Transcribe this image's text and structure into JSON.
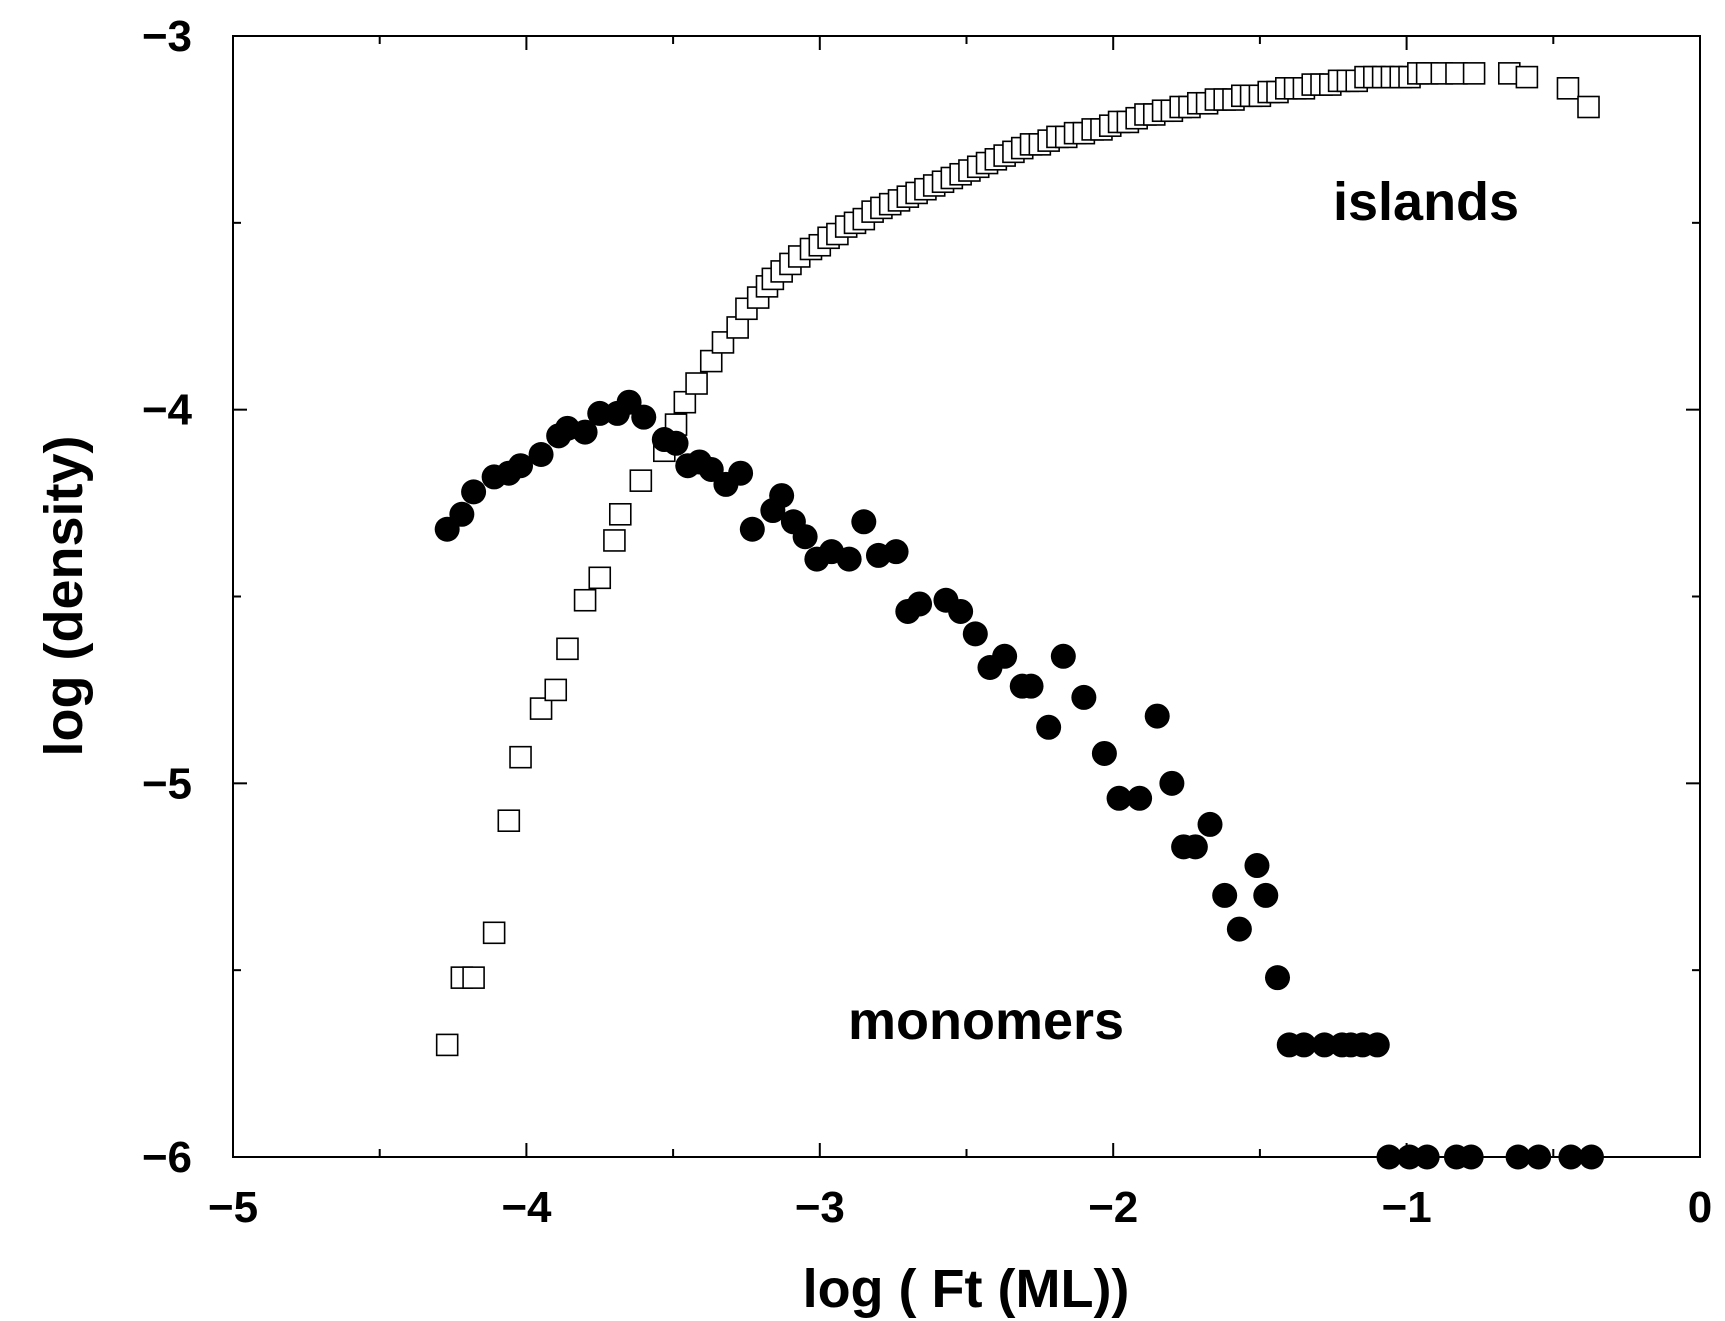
{
  "chart_data": {
    "type": "scatter",
    "xlabel": "log ( Ft (ML))",
    "ylabel": "log (density)",
    "xlim": [
      -5,
      0
    ],
    "ylim": [
      -6,
      -3
    ],
    "x_ticks": [
      -5,
      -4,
      -3,
      -2,
      -1,
      0
    ],
    "y_ticks": [
      -6,
      -5,
      -4,
      -3
    ],
    "x_tick_labels": [
      "−5",
      "−4",
      "−3",
      "−2",
      "−1",
      "0"
    ],
    "y_tick_labels": [
      "−6",
      "−5",
      "−4",
      "−3"
    ],
    "grid": false,
    "annotations": [
      {
        "text": "islands",
        "x": -2.4,
        "y": -3.45,
        "series": "islands"
      },
      {
        "text": "monomers",
        "x": -3.5,
        "y": -5.6,
        "series": "monomers"
      }
    ],
    "series": [
      {
        "id": "islands",
        "marker": "open-square",
        "color": "#000000",
        "x": [
          -4.27,
          -4.22,
          -4.18,
          -4.11,
          -4.06,
          -4.02,
          -3.95,
          -3.9,
          -3.86,
          -3.8,
          -3.75,
          -3.7,
          -3.68,
          -3.61,
          -3.53,
          -3.49,
          -3.46,
          -3.42,
          -3.37,
          -3.33,
          -3.28,
          -3.25,
          -3.21,
          -3.18,
          -3.16,
          -3.13,
          -3.1,
          -3.07,
          -3.03,
          -3.0,
          -2.97,
          -2.94,
          -2.91,
          -2.88,
          -2.85,
          -2.82,
          -2.79,
          -2.76,
          -2.73,
          -2.7,
          -2.67,
          -2.64,
          -2.61,
          -2.58,
          -2.55,
          -2.52,
          -2.49,
          -2.46,
          -2.43,
          -2.4,
          -2.37,
          -2.34,
          -2.31,
          -2.28,
          -2.25,
          -2.22,
          -2.19,
          -2.16,
          -2.13,
          -2.1,
          -2.07,
          -2.04,
          -2.01,
          -1.98,
          -1.95,
          -1.92,
          -1.89,
          -1.86,
          -1.83,
          -1.8,
          -1.77,
          -1.74,
          -1.71,
          -1.68,
          -1.65,
          -1.62,
          -1.59,
          -1.56,
          -1.53,
          -1.5,
          -1.47,
          -1.44,
          -1.41,
          -1.38,
          -1.35,
          -1.32,
          -1.29,
          -1.26,
          -1.23,
          -1.2,
          -1.17,
          -1.14,
          -1.11,
          -1.08,
          -1.05,
          -1.02,
          -0.99,
          -0.96,
          -0.93,
          -0.88,
          -0.83,
          -0.77,
          -0.65,
          -0.59,
          -0.45,
          -0.38
        ],
        "y": [
          -5.7,
          -5.52,
          -5.52,
          -5.4,
          -5.1,
          -4.93,
          -4.8,
          -4.75,
          -4.64,
          -4.51,
          -4.45,
          -4.35,
          -4.28,
          -4.19,
          -4.11,
          -4.04,
          -3.98,
          -3.93,
          -3.87,
          -3.82,
          -3.78,
          -3.73,
          -3.7,
          -3.67,
          -3.65,
          -3.63,
          -3.61,
          -3.59,
          -3.57,
          -3.56,
          -3.54,
          -3.53,
          -3.51,
          -3.5,
          -3.49,
          -3.47,
          -3.46,
          -3.45,
          -3.44,
          -3.43,
          -3.42,
          -3.41,
          -3.4,
          -3.39,
          -3.38,
          -3.37,
          -3.36,
          -3.35,
          -3.34,
          -3.33,
          -3.32,
          -3.31,
          -3.3,
          -3.29,
          -3.29,
          -3.28,
          -3.27,
          -3.27,
          -3.26,
          -3.26,
          -3.25,
          -3.25,
          -3.24,
          -3.23,
          -3.23,
          -3.22,
          -3.21,
          -3.21,
          -3.2,
          -3.2,
          -3.19,
          -3.19,
          -3.18,
          -3.18,
          -3.17,
          -3.17,
          -3.17,
          -3.16,
          -3.16,
          -3.16,
          -3.15,
          -3.15,
          -3.14,
          -3.14,
          -3.14,
          -3.13,
          -3.13,
          -3.13,
          -3.12,
          -3.12,
          -3.12,
          -3.11,
          -3.11,
          -3.11,
          -3.11,
          -3.11,
          -3.11,
          -3.1,
          -3.1,
          -3.1,
          -3.1,
          -3.1,
          -3.1,
          -3.11,
          -3.14,
          -3.19
        ]
      },
      {
        "id": "monomers",
        "marker": "filled-circle",
        "color": "#000000",
        "x": [
          -4.27,
          -4.22,
          -4.18,
          -4.11,
          -4.06,
          -4.02,
          -3.95,
          -3.89,
          -3.86,
          -3.8,
          -3.75,
          -3.69,
          -3.65,
          -3.6,
          -3.53,
          -3.49,
          -3.45,
          -3.41,
          -3.37,
          -3.32,
          -3.27,
          -3.23,
          -3.16,
          -3.13,
          -3.09,
          -3.05,
          -3.01,
          -2.96,
          -2.9,
          -2.85,
          -2.8,
          -2.74,
          -2.7,
          -2.66,
          -2.57,
          -2.52,
          -2.47,
          -2.42,
          -2.37,
          -2.31,
          -2.28,
          -2.22,
          -2.17,
          -2.1,
          -2.03,
          -1.98,
          -1.91,
          -1.85,
          -1.8,
          -1.76,
          -1.72,
          -1.67,
          -1.62,
          -1.57,
          -1.51,
          -1.48,
          -1.44,
          -1.4,
          -1.35,
          -1.28,
          -1.22,
          -1.19,
          -1.15,
          -1.1,
          -1.06,
          -0.99,
          -0.93,
          -0.83,
          -0.78,
          -0.62,
          -0.55,
          -0.44,
          -0.37
        ],
        "y": [
          -4.32,
          -4.28,
          -4.22,
          -4.18,
          -4.17,
          -4.15,
          -4.12,
          -4.07,
          -4.05,
          -4.06,
          -4.01,
          -4.01,
          -3.98,
          -4.02,
          -4.08,
          -4.09,
          -4.15,
          -4.14,
          -4.16,
          -4.2,
          -4.17,
          -4.32,
          -4.27,
          -4.23,
          -4.3,
          -4.34,
          -4.4,
          -4.38,
          -4.4,
          -4.3,
          -4.39,
          -4.38,
          -4.54,
          -4.52,
          -4.51,
          -4.54,
          -4.6,
          -4.69,
          -4.66,
          -4.74,
          -4.74,
          -4.85,
          -4.66,
          -4.77,
          -4.92,
          -5.04,
          -5.04,
          -4.82,
          -5.0,
          -5.17,
          -5.17,
          -5.11,
          -5.3,
          -5.39,
          -5.22,
          -5.3,
          -5.52,
          -5.7,
          -5.7,
          -5.7,
          -5.7,
          -5.7,
          -5.7,
          -5.7,
          -6.0,
          -6.0,
          -6.0,
          -6.0,
          -6.0,
          -6.0,
          -6.0,
          -6.0,
          -6.0
        ]
      }
    ]
  }
}
